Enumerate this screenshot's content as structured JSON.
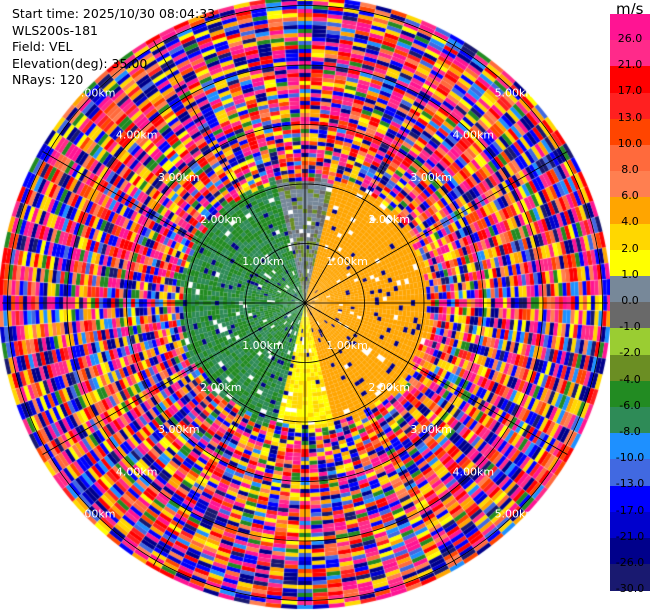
{
  "info": {
    "start_time": "Start time: 2025/10/30 08:04:33",
    "station": "WLS200s-181",
    "field": "Field: VEL",
    "elevation": "Elevation(deg): 35.00",
    "nrays": "NRays: 120"
  },
  "chart_data": {
    "type": "heatmap",
    "projection": "polar-ppi",
    "field": "VEL",
    "elevation_deg": 35.0,
    "n_rays": 120,
    "range_rings_km": [
      1,
      2,
      3,
      4,
      5
    ],
    "ring_labels": [
      "1.00km",
      "2.00km",
      "3.00km",
      "4.00km",
      "5.00km"
    ],
    "colorbar": {
      "unit": "m/s",
      "ticks": [
        "26.0",
        "21.0",
        "17.0",
        "13.0",
        "10.0",
        "8.0",
        "6.0",
        "4.0",
        "2.0",
        "1.0",
        "0.0",
        "-1.0",
        "-2.0",
        "-4.0",
        "-6.0",
        "-8.0",
        "-10.0",
        "-13.0",
        "-17.0",
        "-21.0",
        "-26.0",
        "-30.0"
      ],
      "colors": [
        "#ff1493",
        "#ff2a8a",
        "#ff0000",
        "#ff2020",
        "#ff4500",
        "#ff6a3c",
        "#ff7f50",
        "#ffa500",
        "#ffd700",
        "#ffff00",
        "#778899",
        "#696969",
        "#9acd32",
        "#6b8e23",
        "#228b22",
        "#2e8b57",
        "#1e90ff",
        "#4169e1",
        "#0000ff",
        "#0000cd",
        "#00008b",
        "#191970"
      ]
    }
  }
}
